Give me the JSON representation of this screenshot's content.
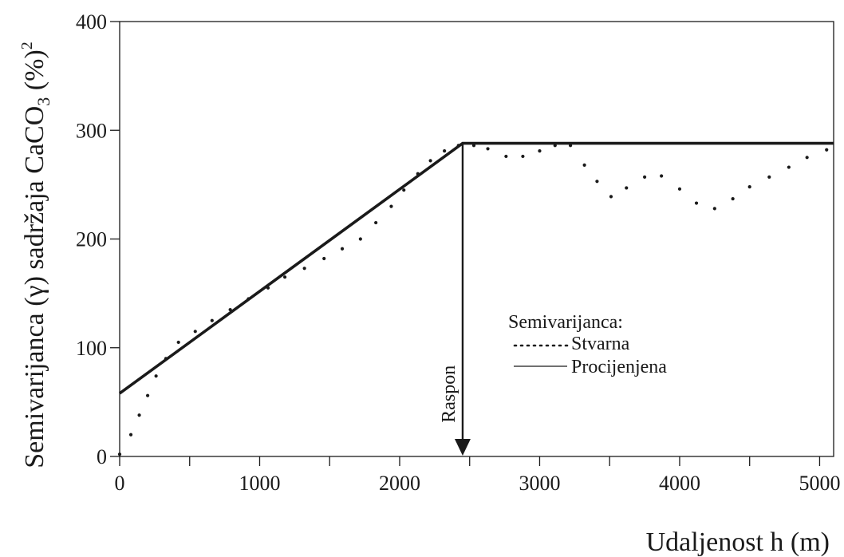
{
  "chart_data": {
    "type": "line",
    "xlabel": "Udaljenost h (m)",
    "ylabel_main": "Semivarijanca (γ) sadržaja CaCO",
    "ylabel_sub": "3",
    "ylabel_tail": " (%)",
    "ylabel_sup": "2",
    "xlim": [
      0,
      5100
    ],
    "ylim": [
      0,
      400
    ],
    "x_ticks": [
      0,
      1000,
      2000,
      3000,
      4000,
      5000
    ],
    "y_ticks": [
      0,
      100,
      200,
      300,
      400
    ],
    "x_ticks_minor": [
      500,
      1500,
      2500,
      3500,
      4500
    ],
    "grid": false,
    "legend": {
      "title": "Semivarijanca:",
      "placement": "middle-right",
      "entries": [
        "Stvarna",
        "Procijenjena"
      ]
    },
    "series": [
      {
        "name": "Stvarna",
        "style": "dotted",
        "x": [
          0,
          80,
          140,
          200,
          260,
          330,
          420,
          540,
          660,
          790,
          920,
          1060,
          1180,
          1320,
          1460,
          1590,
          1720,
          1830,
          1940,
          2030,
          2130,
          2220,
          2320,
          2420,
          2530,
          2630,
          2760,
          2880,
          3000,
          3110,
          3220,
          3320,
          3410,
          3510,
          3620,
          3750,
          3870,
          4000,
          4120,
          4250,
          4380,
          4500,
          4640,
          4780,
          4910,
          5050
        ],
        "y": [
          2,
          20,
          38,
          56,
          74,
          90,
          105,
          115,
          125,
          135,
          145,
          155,
          165,
          173,
          182,
          191,
          200,
          215,
          230,
          245,
          260,
          272,
          281,
          286,
          286,
          283,
          276,
          276,
          281,
          286,
          286,
          268,
          253,
          239,
          247,
          257,
          258,
          246,
          233,
          228,
          237,
          248,
          257,
          266,
          275,
          282
        ]
      },
      {
        "name": "Procijenjena",
        "style": "solid",
        "x": [
          0,
          2450,
          5100
        ],
        "y": [
          58,
          288,
          288
        ]
      }
    ],
    "annotations": [
      {
        "text": "Raspon",
        "x": 2450,
        "y_from": 288,
        "y_to": 0,
        "type": "arrow"
      }
    ]
  }
}
